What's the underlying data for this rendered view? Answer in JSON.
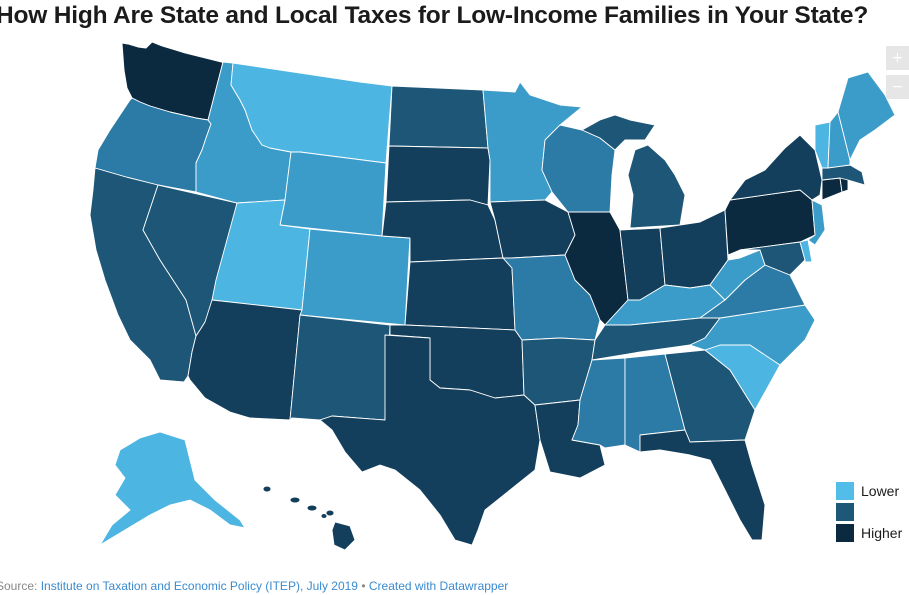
{
  "title": "How High Are State and Local Taxes for Low-Income Families in Your State?",
  "zoom": {
    "in_label": "+",
    "out_label": "−"
  },
  "legend": {
    "items": [
      {
        "label": "Lower",
        "color": "#52bde8"
      },
      {
        "label": "",
        "color": "#1e5878"
      },
      {
        "label": "Higher",
        "color": "#0b2a40"
      }
    ]
  },
  "source": {
    "prefix": "Source: ",
    "org_link": "Institute on Taxation and Economic Policy (ITEP), July 2019",
    "separator": " • ",
    "credit_link": "Created with Datawrapper"
  },
  "palette": {
    "lightest": "#4db5e1",
    "light": "#3c9cc9",
    "mid": "#2c7aa6",
    "dark": "#1d5677",
    "darker": "#143f5c",
    "darkest": "#0b2a40"
  }
}
